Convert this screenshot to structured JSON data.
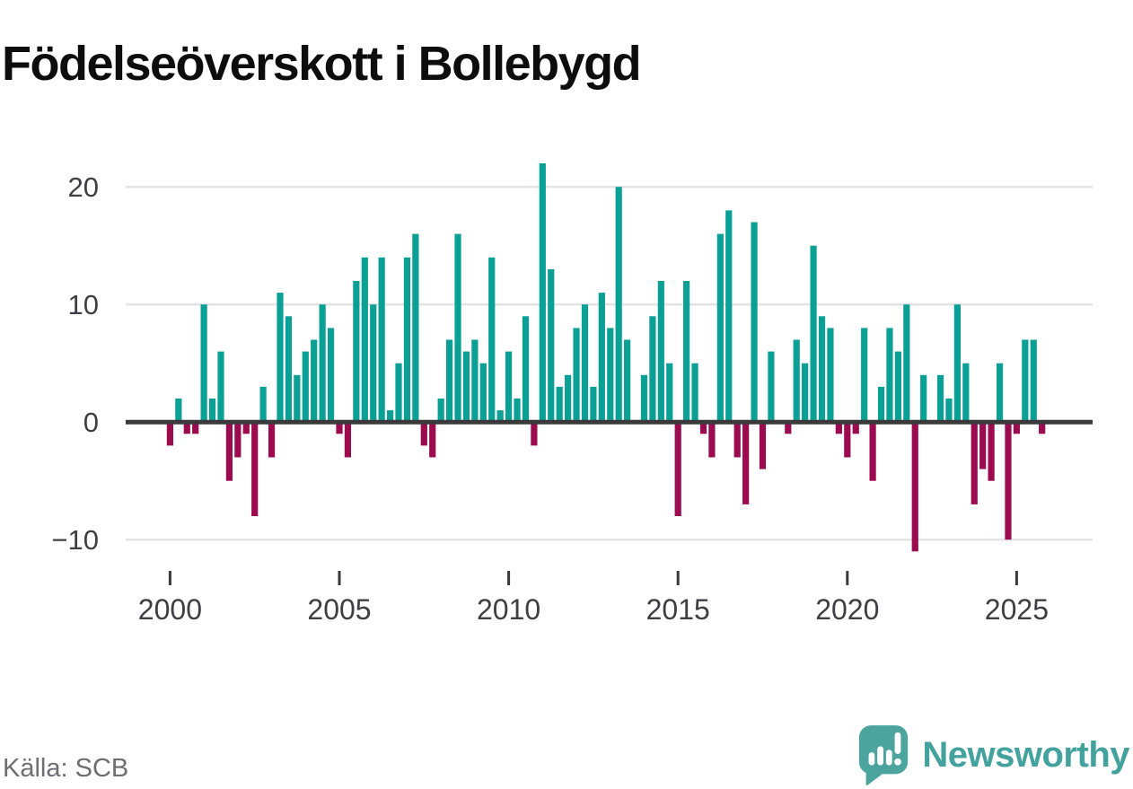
{
  "title": "Födelseöverskott i Bollebygd",
  "source": "Källa: SCB",
  "branding": {
    "wordmark": "Newsworthy",
    "logo_icon": "speech-bubble-bar-chart-exclamation-icon",
    "brand_teal": "#43a29e",
    "logo_bubble_teal": "#4ba49d"
  },
  "colors": {
    "positive_bar": "#0ba096",
    "negative_bar": "#9c0b50",
    "gridline": "#e4e4e6",
    "zero_line": "#3a3a3a",
    "axis_text": "#3e3e43",
    "title_text": "#0d0d0d",
    "source_text": "#6d6d72"
  },
  "chart_data": {
    "type": "bar",
    "title": "Födelseöverskott i Bollebygd",
    "x_unit": "quarter",
    "range": "2000 Q1 – 2025 Q4",
    "grid": "horizontal",
    "legend_position": "none",
    "ylim": [
      -12.5,
      23.5
    ],
    "yticks": [
      {
        "value": 20,
        "label": "20"
      },
      {
        "value": 10,
        "label": "10"
      },
      {
        "value": 0,
        "label": "0"
      },
      {
        "value": -10,
        "label": "−10"
      }
    ],
    "xticks": [
      {
        "value": 2000,
        "label": "2000"
      },
      {
        "value": 2005,
        "label": "2005"
      },
      {
        "value": 2010,
        "label": "2010"
      },
      {
        "value": 2015,
        "label": "2015"
      },
      {
        "value": 2020,
        "label": "2020"
      },
      {
        "value": 2025,
        "label": "2025"
      }
    ],
    "categories": [
      "2000Q1",
      "2000Q2",
      "2000Q3",
      "2000Q4",
      "2001Q1",
      "2001Q2",
      "2001Q3",
      "2001Q4",
      "2002Q1",
      "2002Q2",
      "2002Q3",
      "2002Q4",
      "2003Q1",
      "2003Q2",
      "2003Q3",
      "2003Q4",
      "2004Q1",
      "2004Q2",
      "2004Q3",
      "2004Q4",
      "2005Q1",
      "2005Q2",
      "2005Q3",
      "2005Q4",
      "2006Q1",
      "2006Q2",
      "2006Q3",
      "2006Q4",
      "2007Q1",
      "2007Q2",
      "2007Q3",
      "2007Q4",
      "2008Q1",
      "2008Q2",
      "2008Q3",
      "2008Q4",
      "2009Q1",
      "2009Q2",
      "2009Q3",
      "2009Q4",
      "2010Q1",
      "2010Q2",
      "2010Q3",
      "2010Q4",
      "2011Q1",
      "2011Q2",
      "2011Q3",
      "2011Q4",
      "2012Q1",
      "2012Q2",
      "2012Q3",
      "2012Q4",
      "2013Q1",
      "2013Q2",
      "2013Q3",
      "2013Q4",
      "2014Q1",
      "2014Q2",
      "2014Q3",
      "2014Q4",
      "2015Q1",
      "2015Q2",
      "2015Q3",
      "2015Q4",
      "2016Q1",
      "2016Q2",
      "2016Q3",
      "2016Q4",
      "2017Q1",
      "2017Q2",
      "2017Q3",
      "2017Q4",
      "2018Q1",
      "2018Q2",
      "2018Q3",
      "2018Q4",
      "2019Q1",
      "2019Q2",
      "2019Q3",
      "2019Q4",
      "2020Q1",
      "2020Q2",
      "2020Q3",
      "2020Q4",
      "2021Q1",
      "2021Q2",
      "2021Q3",
      "2021Q4",
      "2022Q1",
      "2022Q2",
      "2022Q3",
      "2022Q4",
      "2023Q1",
      "2023Q2",
      "2023Q3",
      "2023Q4",
      "2024Q1",
      "2024Q2",
      "2024Q3",
      "2024Q4",
      "2025Q1",
      "2025Q2",
      "2025Q3",
      "2025Q4"
    ],
    "values": [
      -2,
      2,
      -1,
      -1,
      10,
      2,
      6,
      -5,
      -3,
      -1,
      -8,
      3,
      -3,
      11,
      9,
      4,
      6,
      7,
      10,
      8,
      -1,
      -3,
      12,
      14,
      10,
      14,
      1,
      5,
      14,
      16,
      -2,
      -3,
      2,
      7,
      16,
      6,
      7,
      5,
      14,
      1,
      6,
      2,
      9,
      -2,
      22,
      13,
      3,
      4,
      8,
      10,
      3,
      11,
      8,
      20,
      7,
      0,
      4,
      9,
      12,
      5,
      -8,
      12,
      5,
      -1,
      -3,
      16,
      18,
      -3,
      -7,
      17,
      -4,
      6,
      0,
      -1,
      7,
      5,
      15,
      9,
      8,
      -1,
      -3,
      -1,
      8,
      -5,
      3,
      8,
      6,
      10,
      -11,
      4,
      0,
      4,
      2,
      10,
      5,
      -7,
      -4,
      -5,
      5,
      -10,
      -1,
      7,
      7,
      -1
    ],
    "bar_colors": {
      "positive": "#0ba096",
      "negative": "#9c0b50"
    }
  }
}
